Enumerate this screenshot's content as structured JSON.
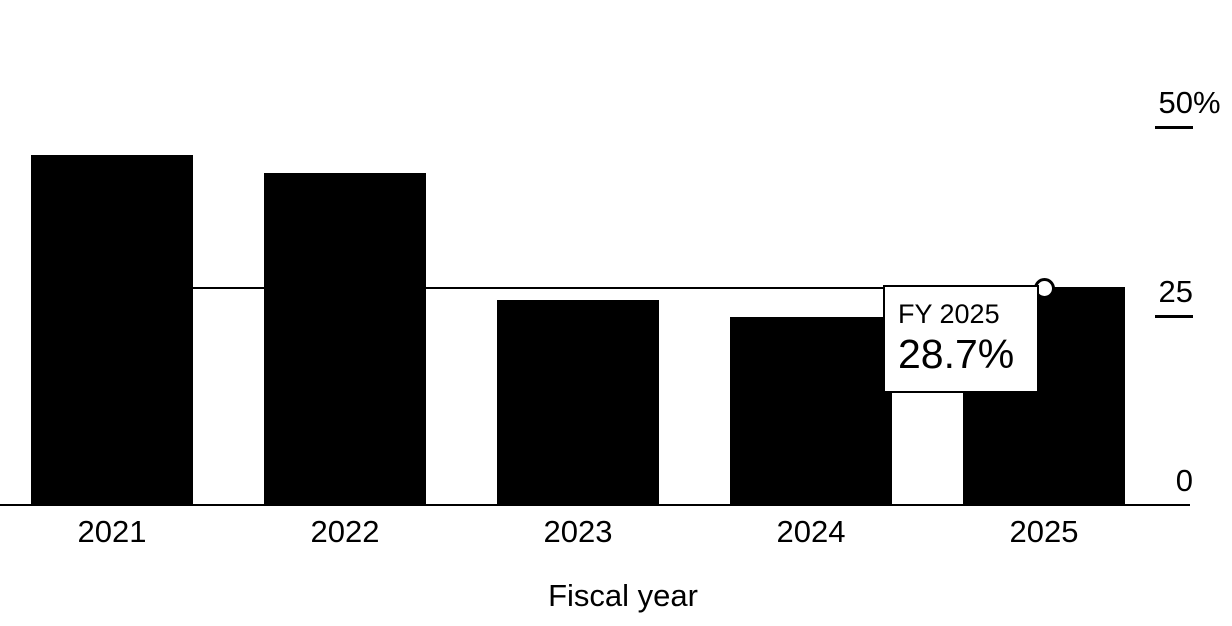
{
  "chart_data": {
    "type": "bar",
    "title": "",
    "xlabel": "Fiscal year",
    "ylabel": "",
    "categories": [
      "2021",
      "2022",
      "2023",
      "2024",
      "2025"
    ],
    "values": [
      46.3,
      43.9,
      27.1,
      24.9,
      28.7
    ],
    "unit": "%",
    "ylim": [
      0,
      50
    ],
    "yticks": [
      {
        "value": 50,
        "label": "50",
        "suffix": "%",
        "tick": true
      },
      {
        "value": 25,
        "label": "25",
        "suffix": "",
        "tick": true
      },
      {
        "value": 0,
        "label": "0",
        "suffix": "",
        "tick": false
      }
    ],
    "grid": false,
    "legend": "none",
    "bar_color": "#000000",
    "background_color": "#ffffff",
    "reference_line": {
      "value": 28.7
    },
    "highlight": {
      "category": "2025",
      "marker": "open-circle"
    },
    "tooltip": {
      "title": "FY 2025",
      "value": "28.7%"
    }
  }
}
